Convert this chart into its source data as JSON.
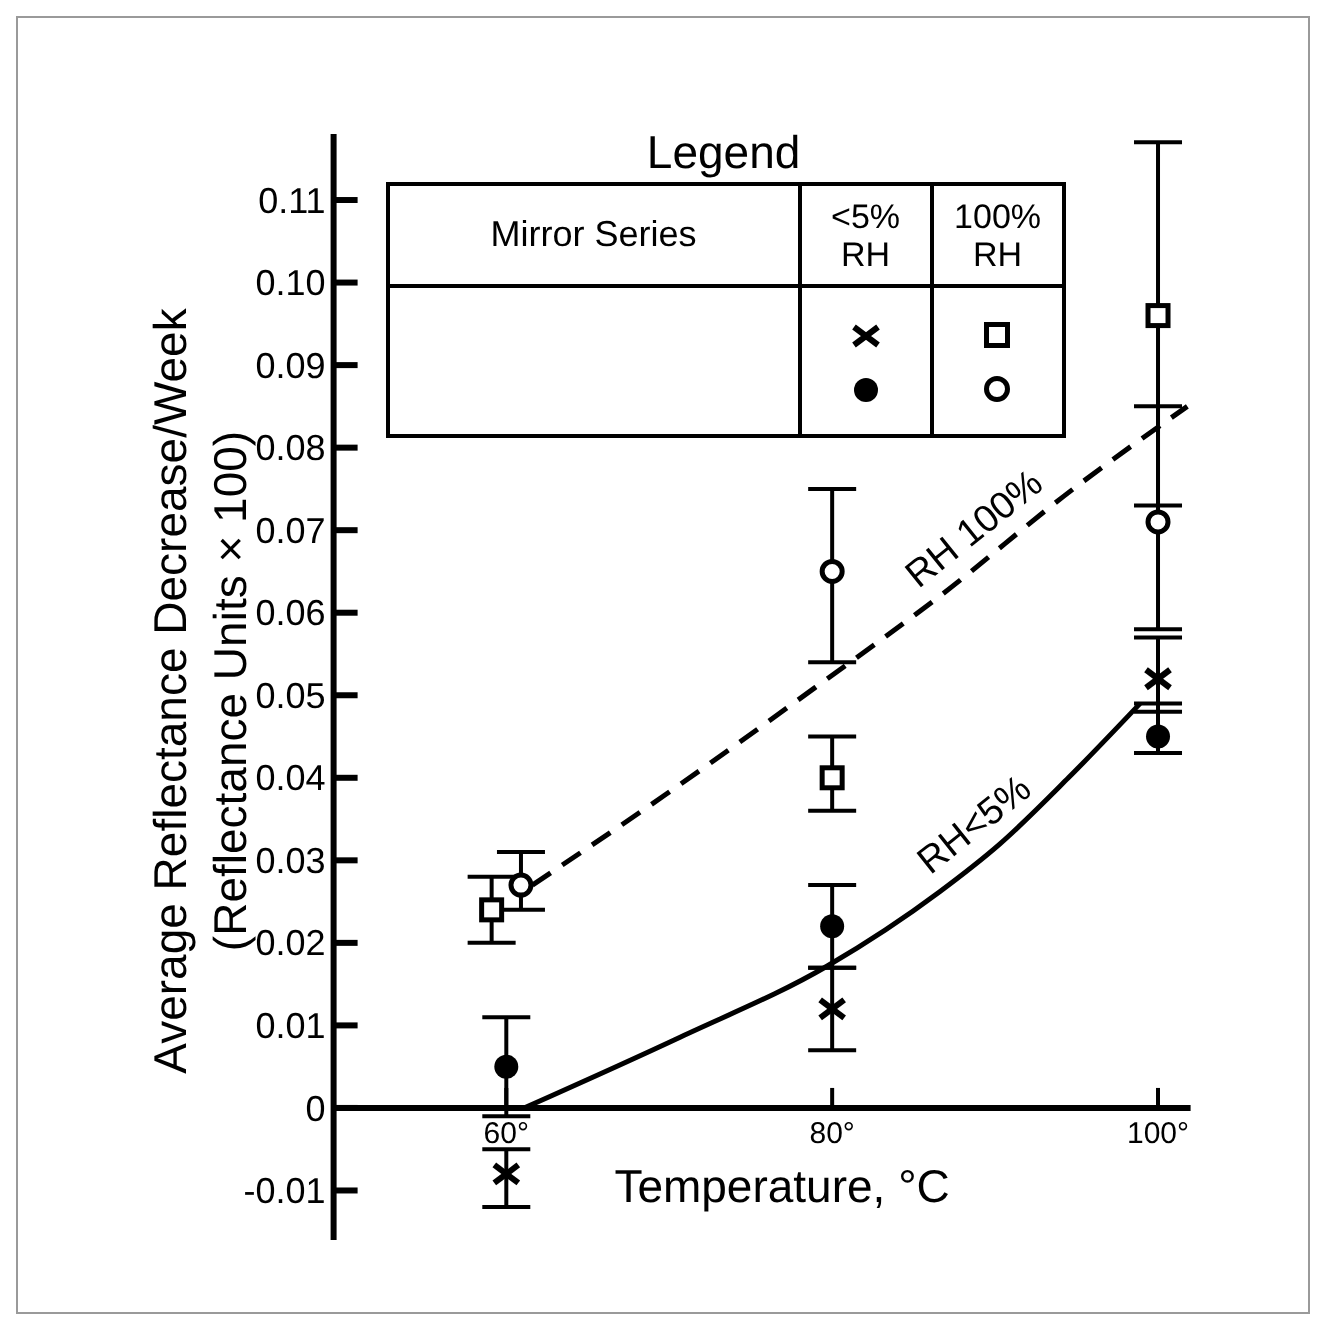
{
  "chart_data": {
    "type": "scatter",
    "xlabel": "Temperature, °C",
    "ylabel": "Average Reflectance Decrease/Week\n(Reflectance Units × 100)",
    "legend_title": "Legend",
    "annotations": [
      "Mirror Series",
      "<5% RH",
      "100% RH"
    ],
    "x": [
      60,
      80,
      100
    ],
    "series": [
      {
        "color": "#000000",
        "marker": "cross",
        "values": [
          -0.008,
          0.012,
          0.052
        ],
        "errors": [
          [
            -0.012,
            -0.005
          ],
          [
            0.007,
            0.017
          ],
          [
            0.048,
            0.057
          ]
        ]
      },
      {
        "color": "#000000",
        "marker": "square-open",
        "x": [
          59.1,
          80,
          100
        ],
        "values": [
          0.024,
          0.04,
          0.096
        ],
        "errors": [
          [
            0.02,
            0.028
          ],
          [
            0.036,
            0.045
          ],
          [
            0.073,
            0.117
          ]
        ]
      },
      {
        "color": "#000000",
        "marker": "circle",
        "values": [
          0.005,
          0.022,
          0.045
        ],
        "errors": [
          [
            -0.001,
            0.011
          ],
          [
            0.017,
            0.027
          ],
          [
            0.043,
            0.049
          ]
        ]
      },
      {
        "color": "#000000",
        "marker": "circle-open",
        "x": [
          60.9,
          80,
          100
        ],
        "values": [
          0.027,
          0.065,
          0.071
        ],
        "errors": [
          [
            0.024,
            0.031
          ],
          [
            0.054,
            0.075
          ],
          [
            0.058,
            0.085
          ]
        ]
      },
      {
        "type": "line",
        "name": "RH 100%",
        "color": "#000000",
        "line_style": "dashed",
        "marker": "none",
        "x": [
          61.6,
          69.8,
          79,
          86.6,
          94.8,
          101.8
        ],
        "values": [
          0.027,
          0.038,
          0.051,
          0.062,
          0.075,
          0.085
        ]
      },
      {
        "type": "line",
        "name": "RH<5%",
        "color": "#000000",
        "line_style": "solid",
        "marker": "none",
        "x": [
          61.1,
          70.7,
          79.7,
          86.6,
          90.3,
          94.5,
          98.9
        ],
        "values": [
          0,
          0.0086,
          0.0172,
          0.0262,
          0.032,
          0.04,
          0.049
        ]
      }
    ],
    "xlim": [
      49.4,
      102
    ],
    "ylim": [
      -0.016,
      0.118
    ],
    "xticks": [
      {
        "value": 60,
        "label": "60°"
      },
      {
        "value": 80,
        "label": "80°"
      },
      {
        "value": 100,
        "label": "100°"
      }
    ],
    "yticks": [
      -0.01,
      0,
      0.01,
      0.02,
      0.03,
      0.04,
      0.05,
      0.06,
      0.07,
      0.08,
      0.09,
      {
        "value": 0.1,
        "label": "0.10"
      },
      0.11
    ]
  }
}
